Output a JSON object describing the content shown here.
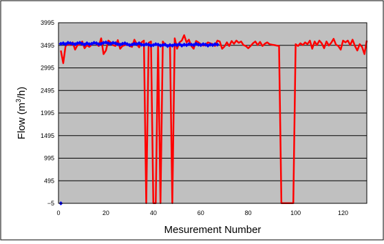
{
  "chart_data": {
    "type": "line",
    "title": "",
    "xlabel": "Mesurement Number",
    "ylabel_main": "Flow (m",
    "ylabel_sup": "3",
    "ylabel_tail": "/h)",
    "xlim": [
      0,
      130
    ],
    "ylim": [
      -5,
      3995
    ],
    "xticks": [
      0,
      20,
      40,
      60,
      80,
      100,
      120
    ],
    "yticks": [
      -5,
      495,
      995,
      1495,
      1995,
      2495,
      2995,
      3495,
      3995
    ],
    "ytick_labels": [
      "−5",
      "495",
      "995",
      "1495",
      "1995",
      "2495",
      "2995",
      "3495",
      "3995"
    ],
    "grid": "horizontal",
    "plot_background": "#c0c0c0",
    "series": [
      {
        "color": "#ff0000",
        "x": [
          1,
          2,
          3,
          4,
          5,
          6,
          7,
          8,
          9,
          10,
          11,
          12,
          13,
          14,
          15,
          16,
          17,
          18,
          19,
          20,
          21,
          22,
          23,
          24,
          25,
          26,
          27,
          28,
          29,
          30,
          31,
          32,
          33,
          34,
          35,
          36,
          37,
          38,
          39,
          40,
          41,
          42,
          43,
          44,
          45,
          46,
          47,
          48,
          49,
          50,
          51,
          52,
          53,
          54,
          55,
          56,
          57,
          58,
          59,
          60,
          61,
          62,
          63,
          64,
          65,
          66,
          67,
          68,
          69,
          70,
          71,
          72,
          73,
          74,
          75,
          76,
          77,
          78,
          79,
          80,
          81,
          82,
          83,
          84,
          85,
          86,
          87,
          88,
          89,
          90,
          91,
          92,
          93,
          94,
          95,
          96,
          97,
          98,
          99,
          100,
          101,
          102,
          103,
          104,
          105,
          106,
          107,
          108,
          109,
          110,
          111,
          112,
          113,
          114,
          115,
          116,
          117,
          118,
          119,
          120,
          121,
          122,
          123,
          124,
          125,
          126,
          127,
          128,
          129,
          130
        ],
        "y": [
          3380,
          3100,
          3480,
          3520,
          3500,
          3560,
          3400,
          3500,
          3510,
          3580,
          3430,
          3500,
          3460,
          3510,
          3560,
          3520,
          3480,
          3650,
          3300,
          3380,
          3600,
          3560,
          3500,
          3480,
          3610,
          3420,
          3480,
          3500,
          3520,
          3480,
          3460,
          3620,
          3520,
          3450,
          3560,
          3600,
          0,
          3550,
          3580,
          0,
          0,
          3520,
          0,
          3580,
          3500,
          3480,
          3520,
          0,
          3650,
          3420,
          3560,
          3600,
          3720,
          3560,
          3620,
          3480,
          3420,
          3590,
          3560,
          3520,
          3490,
          3500,
          3560,
          3540,
          3520,
          3480,
          3600,
          3580,
          3420,
          3470,
          3560,
          3480,
          3590,
          3530,
          3600,
          3550,
          3580,
          3500,
          3480,
          3430,
          3480,
          3540,
          3580,
          3500,
          3570,
          3480,
          3530,
          3560,
          3520,
          3510,
          3500,
          3490,
          3480,
          0,
          0,
          0,
          0,
          0,
          0,
          3520,
          3480,
          3540,
          3500,
          3560,
          3520,
          3600,
          3420,
          3580,
          3500,
          3600,
          3540,
          3430,
          3580,
          3490,
          3550,
          3640,
          3510,
          3480,
          3400,
          3600,
          3560,
          3600,
          3500,
          3620,
          3480,
          3380,
          3520,
          3460,
          3300,
          3600
        ],
        "label_index": null
      },
      {
        "color": "#0000ff",
        "x": [
          1,
          2,
          3,
          4,
          5,
          6,
          7,
          8,
          9,
          10,
          11,
          12,
          13,
          14,
          15,
          16,
          17,
          18,
          19,
          20,
          21,
          22,
          23,
          24,
          25,
          26,
          27,
          28,
          29,
          30,
          31,
          32,
          33,
          34,
          35,
          36,
          37,
          38,
          39,
          40,
          41,
          42,
          43,
          44,
          45,
          46,
          47,
          48,
          49,
          50,
          51,
          52,
          53,
          54,
          55,
          56,
          57,
          58,
          59,
          60,
          61,
          62,
          63,
          64,
          65,
          66,
          67
        ],
        "y": [
          3530,
          3540,
          3520,
          3550,
          3540,
          3530,
          3520,
          3540,
          3550,
          3530,
          3510,
          3540,
          3520,
          3530,
          3550,
          3540,
          3520,
          3530,
          3550,
          3560,
          3540,
          3530,
          3550,
          3540,
          3520,
          3510,
          3530,
          3540,
          3520,
          3500,
          3510,
          3530,
          3520,
          3540,
          3510,
          3500,
          3520,
          3510,
          3490,
          3500,
          3520,
          3510,
          3490,
          3500,
          3510,
          3480,
          3500,
          3490,
          3510,
          3500,
          3520,
          3490,
          3510,
          3500,
          3520,
          3510,
          3500,
          3530,
          3510,
          3500,
          3520,
          3510,
          3490,
          3510,
          3500,
          3520,
          3510
        ],
        "marker": "diamond"
      }
    ],
    "stray_point": {
      "x": 1,
      "y": -5,
      "color": "#0000ff"
    }
  }
}
